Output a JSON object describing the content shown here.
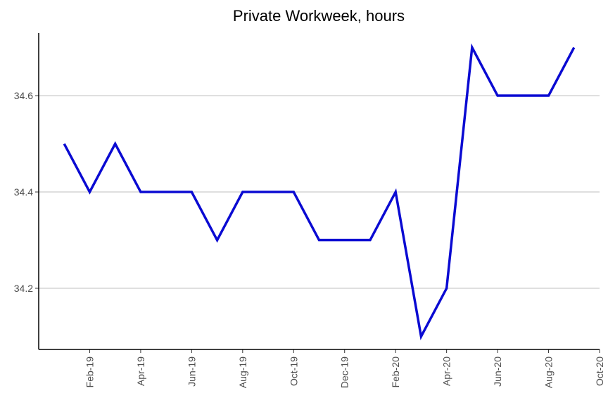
{
  "chart_data": {
    "type": "line",
    "title": "Private Workweek, hours",
    "x": [
      "2019-01",
      "2019-02",
      "2019-03",
      "2019-04",
      "2019-05",
      "2019-06",
      "2019-07",
      "2019-08",
      "2019-09",
      "2019-10",
      "2019-11",
      "2019-12",
      "2020-01",
      "2020-02",
      "2020-03",
      "2020-04",
      "2020-05",
      "2020-06",
      "2020-07",
      "2020-08",
      "2020-09"
    ],
    "series": [
      {
        "name": "Private Workweek",
        "color": "#0a0ad2",
        "values": [
          34.5,
          34.4,
          34.5,
          34.4,
          34.4,
          34.4,
          34.3,
          34.4,
          34.4,
          34.4,
          34.3,
          34.3,
          34.3,
          34.4,
          34.1,
          34.2,
          34.7,
          34.6,
          34.6,
          34.6,
          34.7
        ]
      }
    ],
    "xlim": [
      "2018-12",
      "2020-10"
    ],
    "xticks": [
      {
        "value": "2019-02",
        "label": "Feb-19"
      },
      {
        "value": "2019-04",
        "label": "Apr-19"
      },
      {
        "value": "2019-06",
        "label": "Jun-19"
      },
      {
        "value": "2019-08",
        "label": "Aug-19"
      },
      {
        "value": "2019-10",
        "label": "Oct-19"
      },
      {
        "value": "2019-12",
        "label": "Dec-19"
      },
      {
        "value": "2020-02",
        "label": "Feb-20"
      },
      {
        "value": "2020-04",
        "label": "Apr-20"
      },
      {
        "value": "2020-06",
        "label": "Jun-20"
      },
      {
        "value": "2020-08",
        "label": "Aug-20"
      },
      {
        "value": "2020-10",
        "label": "Oct-20"
      }
    ],
    "ylim": [
      34.073,
      34.73
    ],
    "yticks": [
      34.2,
      34.4,
      34.6
    ],
    "grid": true
  }
}
